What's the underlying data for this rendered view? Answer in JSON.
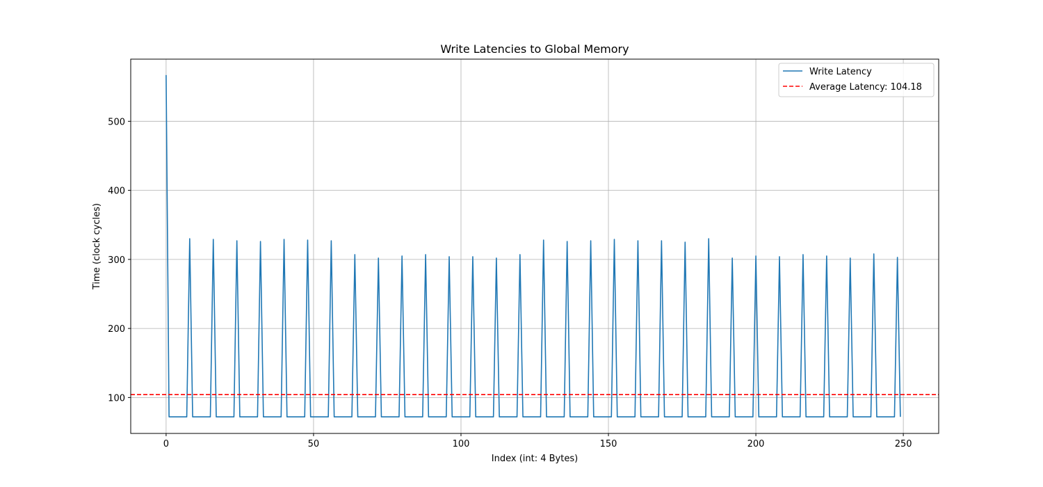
{
  "chart_data": {
    "type": "line",
    "title": "Write Latencies to Global Memory",
    "xlabel": "Index (int: 4 Bytes)",
    "ylabel": "Time (clock cycles)",
    "xlim": [
      -12,
      262
    ],
    "ylim": [
      48,
      590
    ],
    "x_ticks": [
      0,
      50,
      100,
      150,
      200,
      250
    ],
    "y_ticks": [
      100,
      200,
      300,
      400,
      500
    ],
    "grid": true,
    "legend_position": "top-right",
    "series": [
      {
        "name": "Write Latency",
        "color": "#1f77b4",
        "style": "solid",
        "baseline": 72,
        "first": {
          "x": 0,
          "y": 567
        },
        "peaks": [
          {
            "x": 8,
            "y": 330
          },
          {
            "x": 16,
            "y": 329
          },
          {
            "x": 24,
            "y": 327
          },
          {
            "x": 32,
            "y": 326
          },
          {
            "x": 40,
            "y": 329
          },
          {
            "x": 48,
            "y": 328
          },
          {
            "x": 56,
            "y": 327
          },
          {
            "x": 64,
            "y": 307
          },
          {
            "x": 72,
            "y": 302
          },
          {
            "x": 80,
            "y": 305
          },
          {
            "x": 88,
            "y": 307
          },
          {
            "x": 96,
            "y": 304
          },
          {
            "x": 104,
            "y": 304
          },
          {
            "x": 112,
            "y": 302
          },
          {
            "x": 120,
            "y": 307
          },
          {
            "x": 128,
            "y": 328
          },
          {
            "x": 136,
            "y": 326
          },
          {
            "x": 144,
            "y": 327
          },
          {
            "x": 152,
            "y": 329
          },
          {
            "x": 160,
            "y": 327
          },
          {
            "x": 168,
            "y": 327
          },
          {
            "x": 176,
            "y": 325
          },
          {
            "x": 184,
            "y": 330
          },
          {
            "x": 192,
            "y": 302
          },
          {
            "x": 200,
            "y": 305
          },
          {
            "x": 208,
            "y": 304
          },
          {
            "x": 216,
            "y": 307
          },
          {
            "x": 224,
            "y": 305
          },
          {
            "x": 232,
            "y": 302
          },
          {
            "x": 240,
            "y": 308
          },
          {
            "x": 248,
            "y": 303
          }
        ],
        "last": {
          "x": 249,
          "y": 72
        }
      },
      {
        "name": "Average Latency: 104.18",
        "color": "#ff0000",
        "style": "dashed",
        "y": 104.18
      }
    ]
  }
}
